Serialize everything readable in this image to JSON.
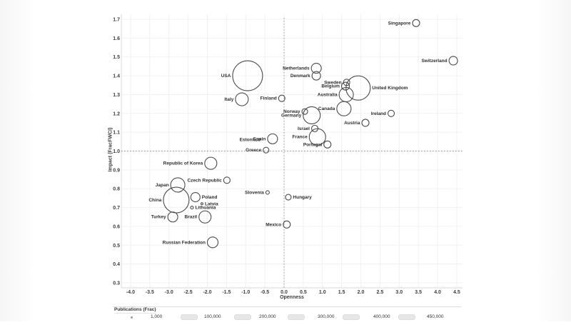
{
  "chart_data": {
    "type": "scatter",
    "title": "",
    "xlabel": "Openness",
    "ylabel": "Impact (FracFWCI)",
    "xlim": [
      -4.0,
      4.5
    ],
    "ylim": [
      0.3,
      1.7
    ],
    "grid": true,
    "reference_lines": {
      "vertical_at_x": 0.0,
      "horizontal_at_y": 1.0
    },
    "x_ticks": [
      "-4.0",
      "-3.5",
      "-3.0",
      "-2.5",
      "-2.0",
      "-1.5",
      "-1.0",
      "-0.5",
      "0.0",
      "0.5",
      "1.0",
      "1.5",
      "2.0",
      "2.5",
      "3.0",
      "3.5",
      "4.0",
      "4.5"
    ],
    "y_ticks": [
      "0.3",
      "0.4",
      "0.5",
      "0.6",
      "0.7",
      "0.8",
      "0.9",
      "1.0",
      "1.1",
      "1.2",
      "1.3",
      "1.4",
      "1.5",
      "1.6",
      "1.7"
    ],
    "bubble_style": {
      "stroke": "#4a4a4a",
      "fill": "transparent"
    },
    "points": [
      {
        "label": "Singapore",
        "openness": 3.44,
        "impact": 1.68,
        "r": 5
      },
      {
        "label": "Switzerland",
        "openness": 4.41,
        "impact": 1.48,
        "r": 6
      },
      {
        "label": "Netherlands",
        "openness": 0.84,
        "impact": 1.44,
        "r": 7
      },
      {
        "label": "Denmark",
        "openness": 0.84,
        "impact": 1.4,
        "r": 6
      },
      {
        "label": "Sweden",
        "openness": 1.63,
        "impact": 1.365,
        "r": 4.5
      },
      {
        "label": "Belgium",
        "openness": 1.6,
        "impact": 1.345,
        "r": 5.5
      },
      {
        "label": "United Kingdom",
        "openness": 1.93,
        "impact": 1.335,
        "r": 17,
        "label_side": "right"
      },
      {
        "label": "Australia",
        "openness": 1.62,
        "impact": 1.3,
        "r": 10
      },
      {
        "label": "USA",
        "openness": -0.95,
        "impact": 1.4,
        "r": 21
      },
      {
        "label": "Italy",
        "openness": -1.1,
        "impact": 1.275,
        "r": 9
      },
      {
        "label": "Finland",
        "openness": -0.06,
        "impact": 1.28,
        "r": 4.5
      },
      {
        "label": "Norway",
        "openness": 0.54,
        "impact": 1.21,
        "r": 4
      },
      {
        "label": "Germany",
        "openness": 0.72,
        "impact": 1.19,
        "r": 12
      },
      {
        "label": "Canada",
        "openness": 1.56,
        "impact": 1.225,
        "r": 10
      },
      {
        "label": "Ireland",
        "openness": 2.79,
        "impact": 1.2,
        "r": 4.5
      },
      {
        "label": "Austria",
        "openness": 2.12,
        "impact": 1.15,
        "r": 5
      },
      {
        "label": "Israel",
        "openness": 0.8,
        "impact": 1.12,
        "r": 4.5
      },
      {
        "label": "France",
        "openness": 0.87,
        "impact": 1.075,
        "r": 11.5
      },
      {
        "label": "Portugal",
        "openness": 1.13,
        "impact": 1.035,
        "r": 5
      },
      {
        "label": "Spain",
        "openness": -0.3,
        "impact": 1.065,
        "r": 7
      },
      {
        "label": "Estonia",
        "openness": -0.65,
        "impact": 1.06,
        "r": 1.5
      },
      {
        "label": "Greece",
        "openness": -0.47,
        "impact": 1.005,
        "r": 4
      },
      {
        "label": "Republic of Korea",
        "openness": -1.91,
        "impact": 0.935,
        "r": 8.5
      },
      {
        "label": "Czech Republic",
        "openness": -1.49,
        "impact": 0.845,
        "r": 4.5
      },
      {
        "label": "Japan",
        "openness": -2.77,
        "impact": 0.82,
        "r": 10
      },
      {
        "label": "China",
        "openness": -2.81,
        "impact": 0.74,
        "r": 18
      },
      {
        "label": "Poland",
        "openness": -2.31,
        "impact": 0.755,
        "r": 6.5,
        "label_side": "right"
      },
      {
        "label": "Latvia",
        "openness": -2.14,
        "impact": 0.72,
        "r": 1.5,
        "label_side": "right"
      },
      {
        "label": "Lithuania",
        "openness": -2.4,
        "impact": 0.7,
        "r": 2,
        "label_side": "right"
      },
      {
        "label": "Turkey",
        "openness": -2.9,
        "impact": 0.65,
        "r": 7
      },
      {
        "label": "Brazil",
        "openness": -2.06,
        "impact": 0.65,
        "r": 8.5
      },
      {
        "label": "Slovenia",
        "openness": -0.43,
        "impact": 0.78,
        "r": 2.5
      },
      {
        "label": "Hungary",
        "openness": 0.11,
        "impact": 0.755,
        "r": 4,
        "label_side": "right"
      },
      {
        "label": "Mexico",
        "openness": 0.07,
        "impact": 0.61,
        "r": 5
      },
      {
        "label": "Russian Federation",
        "openness": -1.86,
        "impact": 0.515,
        "r": 7.5
      }
    ],
    "legend": {
      "title": "Publications (Frac)",
      "entries": [
        {
          "label": "1,000",
          "swatch": "dot"
        },
        {
          "label": "100,000",
          "swatch": "box"
        },
        {
          "label": "200,000",
          "swatch": "box"
        },
        {
          "label": "300,000",
          "swatch": "box"
        },
        {
          "label": "400,000",
          "swatch": "box"
        },
        {
          "label": "450,000",
          "swatch": "box"
        }
      ]
    }
  }
}
